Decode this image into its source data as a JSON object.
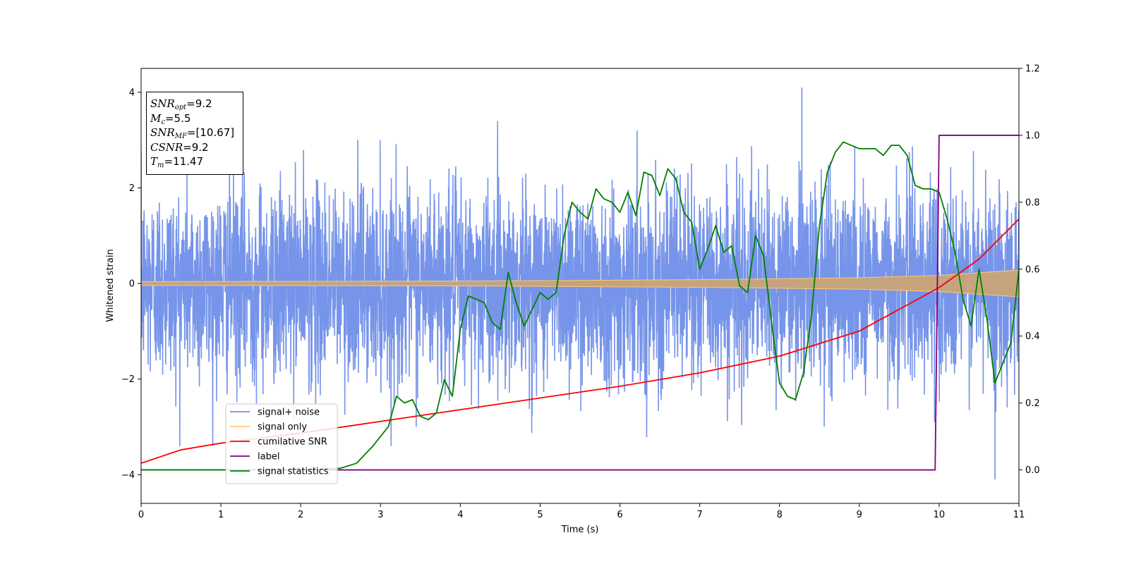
{
  "chart_data": {
    "type": "line",
    "xlabel": "Time (s)",
    "ylabel": "Whitened strain",
    "xlim": [
      0,
      11
    ],
    "ylim": [
      -4.6,
      4.5
    ],
    "y2lim": [
      -0.1,
      1.2
    ],
    "xticks": [
      "0",
      "1",
      "2",
      "3",
      "4",
      "5",
      "6",
      "7",
      "8",
      "9",
      "10",
      "11"
    ],
    "yticks": [
      "−4",
      "−2",
      "0",
      "2",
      "4"
    ],
    "y2ticks": [
      "0.0",
      "0.2",
      "0.4",
      "0.6",
      "0.8",
      "1.0",
      "1.2"
    ],
    "legend_position": "lower-left",
    "info_box": {
      "position": "top-left",
      "lines": [
        {
          "symbol": "SNR",
          "sub": "opt",
          "value": "=9.2"
        },
        {
          "symbol": "M",
          "sub": "c",
          "value": "=5.5"
        },
        {
          "symbol": "SNR",
          "sub": "MF",
          "value": "=[10.67]"
        },
        {
          "symbol": "CSNR",
          "sub": "",
          "value": "=9.2"
        },
        {
          "symbol": "T",
          "sub": "m",
          "value": "=11.47"
        }
      ]
    },
    "series": [
      {
        "name": "signal+ noise",
        "axis": "left",
        "color": "#6f8ee8",
        "kind": "noise",
        "noise_std": 1.0,
        "typical_band": [
          -2.2,
          2.2
        ],
        "peak_max": 4.1,
        "peak_min": -4.1
      },
      {
        "name": "signal only",
        "axis": "left",
        "color": "#ffc878",
        "kind": "chirp",
        "amplitude_envelope": {
          "x": [
            0,
            4,
            7,
            9,
            10,
            11
          ],
          "y": [
            0.04,
            0.05,
            0.08,
            0.12,
            0.17,
            0.28
          ]
        }
      },
      {
        "name": "cumilative SNR",
        "axis": "right",
        "color": "#ff0000",
        "x": [
          0,
          0.5,
          1,
          2,
          3,
          4,
          5,
          6,
          7,
          8,
          9,
          10,
          10.5,
          11
        ],
        "y": [
          0.02,
          0.06,
          0.08,
          0.11,
          0.145,
          0.18,
          0.215,
          0.25,
          0.29,
          0.34,
          0.415,
          0.545,
          0.63,
          0.75
        ]
      },
      {
        "name": "label",
        "axis": "right",
        "color": "#800080",
        "x": [
          0,
          9.95,
          10.0,
          11
        ],
        "y": [
          0.0,
          0.0,
          1.0,
          1.0
        ]
      },
      {
        "name": "signal statistics",
        "axis": "right",
        "color": "#008000",
        "x": [
          0,
          1,
          2,
          2.5,
          2.7,
          2.8,
          2.9,
          3.0,
          3.1,
          3.2,
          3.3,
          3.4,
          3.5,
          3.6,
          3.7,
          3.8,
          3.9,
          4.0,
          4.1,
          4.2,
          4.3,
          4.4,
          4.5,
          4.6,
          4.7,
          4.8,
          4.9,
          5.0,
          5.1,
          5.2,
          5.3,
          5.4,
          5.5,
          5.6,
          5.7,
          5.8,
          5.9,
          6.0,
          6.1,
          6.2,
          6.3,
          6.4,
          6.5,
          6.6,
          6.7,
          6.8,
          6.9,
          7.0,
          7.1,
          7.2,
          7.3,
          7.4,
          7.5,
          7.6,
          7.7,
          7.8,
          7.9,
          8.0,
          8.1,
          8.2,
          8.3,
          8.4,
          8.5,
          8.6,
          8.7,
          8.8,
          8.9,
          9.0,
          9.1,
          9.2,
          9.3,
          9.4,
          9.5,
          9.6,
          9.7,
          9.8,
          9.9,
          10.0,
          10.1,
          10.2,
          10.3,
          10.4,
          10.5,
          10.6,
          10.7,
          10.8,
          10.9,
          11.0
        ],
        "y": [
          0.0,
          0.0,
          0.0,
          0.005,
          0.02,
          0.045,
          0.07,
          0.1,
          0.13,
          0.22,
          0.2,
          0.21,
          0.16,
          0.15,
          0.17,
          0.27,
          0.22,
          0.42,
          0.52,
          0.51,
          0.5,
          0.44,
          0.42,
          0.59,
          0.5,
          0.43,
          0.48,
          0.53,
          0.51,
          0.53,
          0.7,
          0.8,
          0.77,
          0.75,
          0.84,
          0.81,
          0.8,
          0.77,
          0.83,
          0.76,
          0.89,
          0.88,
          0.82,
          0.9,
          0.87,
          0.77,
          0.74,
          0.6,
          0.66,
          0.73,
          0.65,
          0.67,
          0.55,
          0.53,
          0.7,
          0.64,
          0.44,
          0.26,
          0.22,
          0.21,
          0.29,
          0.46,
          0.73,
          0.89,
          0.95,
          0.98,
          0.97,
          0.96,
          0.96,
          0.96,
          0.94,
          0.97,
          0.97,
          0.94,
          0.85,
          0.84,
          0.84,
          0.83,
          0.75,
          0.65,
          0.51,
          0.43,
          0.6,
          0.45,
          0.26,
          0.32,
          0.38,
          0.6
        ]
      }
    ]
  }
}
